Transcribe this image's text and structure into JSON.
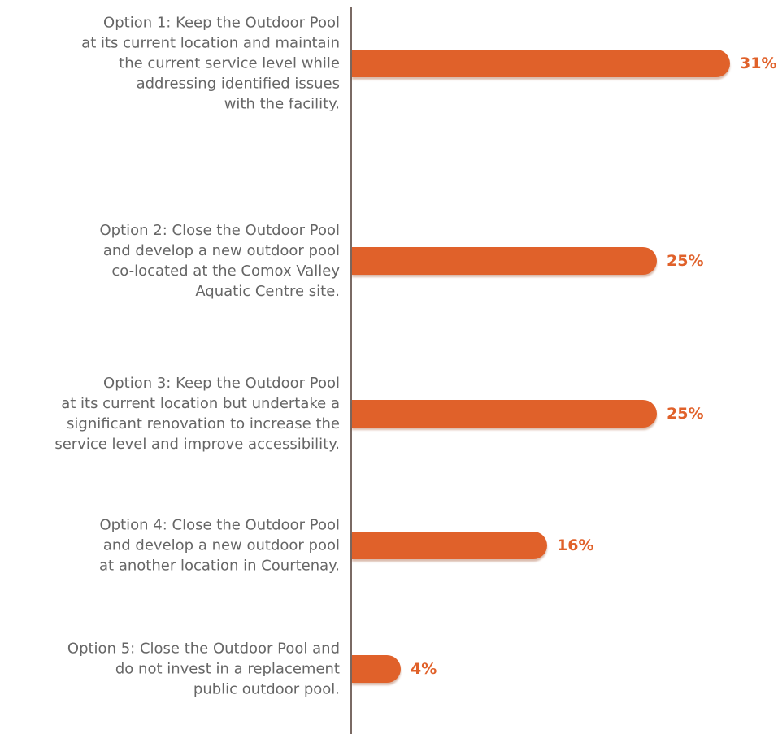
{
  "chart_data": {
    "type": "bar",
    "orientation": "horizontal",
    "categories": [
      "Option 1: Keep the Outdoor Pool\nat its current location and maintain\nthe current service level while\naddressing identified issues\nwith the facility.",
      "Option 2: Close the Outdoor Pool\nand develop a new outdoor pool\nco-located at the Comox Valley\nAquatic Centre site.",
      "Option 3: Keep the Outdoor Pool\nat its current location but undertake a\nsignificant renovation to increase the\nservice level and improve accessibility.",
      "Option 4: Close the Outdoor Pool\nand develop a new outdoor pool\nat another location in Courtenay.",
      "Option 5: Close the Outdoor Pool and\ndo not invest in a replacement\npublic outdoor pool."
    ],
    "values": [
      31,
      25,
      25,
      16,
      4
    ],
    "value_labels": [
      "31%",
      "25%",
      "25%",
      "16%",
      "4%"
    ],
    "color": "#e0612a"
  }
}
